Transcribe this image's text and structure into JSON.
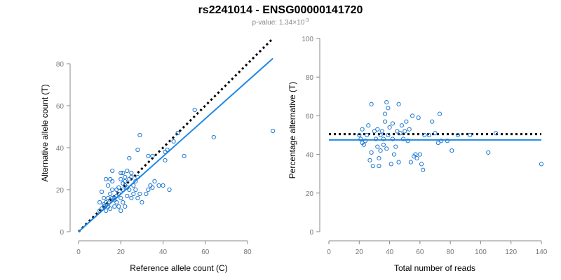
{
  "title": "rs2241014 - ENSG00000141720",
  "subtitle_prefix": "p-value: 1.34×10",
  "subtitle_exp": "-3",
  "colors": {
    "points": "#1f78d1",
    "fit_line": "#1e88e5",
    "reference_line": "#000000"
  },
  "chart_data": [
    {
      "type": "scatter",
      "xlabel": "Reference allele count (C)",
      "ylabel": "Alternative allele count (T)",
      "xlim": [
        0,
        90
      ],
      "ylim": [
        0,
        85
      ],
      "xticks": [
        0,
        20,
        40,
        60,
        80
      ],
      "yticks": [
        0,
        20,
        40,
        60,
        80
      ],
      "grid": false,
      "points": [
        [
          10,
          10
        ],
        [
          11,
          11
        ],
        [
          12,
          12
        ],
        [
          13,
          10
        ],
        [
          14,
          12
        ],
        [
          15,
          11
        ],
        [
          13,
          14
        ],
        [
          15,
          15
        ],
        [
          16,
          16
        ],
        [
          17,
          15
        ],
        [
          18,
          17
        ],
        [
          15,
          18
        ],
        [
          16,
          20
        ],
        [
          14,
          22
        ],
        [
          12,
          16
        ],
        [
          11,
          19
        ],
        [
          10,
          14
        ],
        [
          16,
          24
        ],
        [
          18,
          20
        ],
        [
          19,
          18
        ],
        [
          20,
          16
        ],
        [
          21,
          14
        ],
        [
          22,
          12
        ],
        [
          20,
          10
        ],
        [
          19,
          12
        ],
        [
          18,
          14
        ],
        [
          21,
          20
        ],
        [
          22,
          22
        ],
        [
          23,
          21
        ],
        [
          24,
          20
        ],
        [
          21,
          23
        ],
        [
          20,
          25
        ],
        [
          22,
          26
        ],
        [
          21,
          28
        ],
        [
          20,
          28
        ],
        [
          23,
          29
        ],
        [
          25,
          28
        ],
        [
          24,
          25
        ],
        [
          26,
          22
        ],
        [
          27,
          20
        ],
        [
          26,
          18
        ],
        [
          25,
          16
        ],
        [
          28,
          16
        ],
        [
          30,
          14
        ],
        [
          29,
          18
        ],
        [
          27,
          24
        ],
        [
          28,
          26
        ],
        [
          24,
          35
        ],
        [
          28,
          39
        ],
        [
          29,
          46
        ],
        [
          32,
          18
        ],
        [
          33,
          20
        ],
        [
          34,
          22
        ],
        [
          35,
          21
        ],
        [
          36,
          24
        ],
        [
          33,
          36
        ],
        [
          35,
          36
        ],
        [
          38,
          22
        ],
        [
          40,
          22
        ],
        [
          41,
          34
        ],
        [
          41,
          38
        ],
        [
          42,
          39
        ],
        [
          43,
          20
        ],
        [
          45,
          43
        ],
        [
          47,
          47
        ],
        [
          50,
          36
        ],
        [
          55,
          58
        ],
        [
          64,
          45
        ],
        [
          92,
          48
        ],
        [
          16,
          29
        ],
        [
          15,
          25
        ],
        [
          13,
          25
        ],
        [
          17,
          16
        ],
        [
          19,
          21
        ],
        [
          22,
          24
        ],
        [
          25,
          26
        ],
        [
          12,
          13
        ],
        [
          14,
          16
        ],
        [
          17,
          12
        ],
        [
          23,
          17
        ]
      ],
      "fit_line": {
        "x": [
          0,
          92
        ],
        "y": [
          0,
          82.5
        ]
      },
      "reference_line": {
        "x": [
          0,
          92
        ],
        "y": [
          0,
          92
        ]
      }
    },
    {
      "type": "scatter",
      "xlabel": "Total number of reads",
      "ylabel": "Percentage alternative (T)",
      "xlim": [
        0,
        140
      ],
      "ylim": [
        0,
        100
      ],
      "xticks": [
        0,
        20,
        40,
        60,
        80,
        100,
        120,
        140
      ],
      "yticks": [
        0,
        20,
        40,
        60,
        80,
        100
      ],
      "grid": false,
      "points": [
        [
          20,
          50
        ],
        [
          21,
          48
        ],
        [
          22,
          46
        ],
        [
          22,
          53
        ],
        [
          23,
          45
        ],
        [
          24,
          47
        ],
        [
          25,
          50
        ],
        [
          26,
          55
        ],
        [
          27,
          37
        ],
        [
          28,
          41
        ],
        [
          28,
          66
        ],
        [
          29,
          34
        ],
        [
          30,
          52
        ],
        [
          31,
          48
        ],
        [
          32,
          44
        ],
        [
          32,
          53
        ],
        [
          33,
          34
        ],
        [
          33,
          38
        ],
        [
          34,
          42
        ],
        [
          34,
          50
        ],
        [
          35,
          52
        ],
        [
          36,
          45
        ],
        [
          36,
          48
        ],
        [
          37,
          57
        ],
        [
          37,
          61
        ],
        [
          38,
          67
        ],
        [
          38,
          43
        ],
        [
          39,
          50
        ],
        [
          39,
          64
        ],
        [
          40,
          54
        ],
        [
          41,
          35
        ],
        [
          42,
          56
        ],
        [
          42,
          48
        ],
        [
          43,
          40
        ],
        [
          44,
          44
        ],
        [
          45,
          52
        ],
        [
          46,
          66
        ],
        [
          46,
          36
        ],
        [
          47,
          51
        ],
        [
          48,
          55
        ],
        [
          49,
          48
        ],
        [
          50,
          52
        ],
        [
          51,
          57
        ],
        [
          52,
          47
        ],
        [
          53,
          53
        ],
        [
          54,
          36
        ],
        [
          55,
          60
        ],
        [
          56,
          39
        ],
        [
          57,
          40
        ],
        [
          58,
          38
        ],
        [
          59,
          59
        ],
        [
          60,
          40
        ],
        [
          61,
          35
        ],
        [
          62,
          32
        ],
        [
          63,
          50
        ],
        [
          66,
          50
        ],
        [
          68,
          57
        ],
        [
          70,
          51
        ],
        [
          72,
          46
        ],
        [
          73,
          61
        ],
        [
          74,
          47
        ],
        [
          78,
          47
        ],
        [
          81,
          42
        ],
        [
          85,
          50
        ],
        [
          93,
          50
        ],
        [
          105,
          41
        ],
        [
          110,
          51
        ],
        [
          140,
          35
        ]
      ],
      "fit_line": {
        "x": [
          0,
          140
        ],
        "y": [
          47.5,
          47.5
        ]
      },
      "reference_line": {
        "x": [
          0,
          140
        ],
        "y": [
          50.5,
          50.5
        ]
      }
    }
  ]
}
